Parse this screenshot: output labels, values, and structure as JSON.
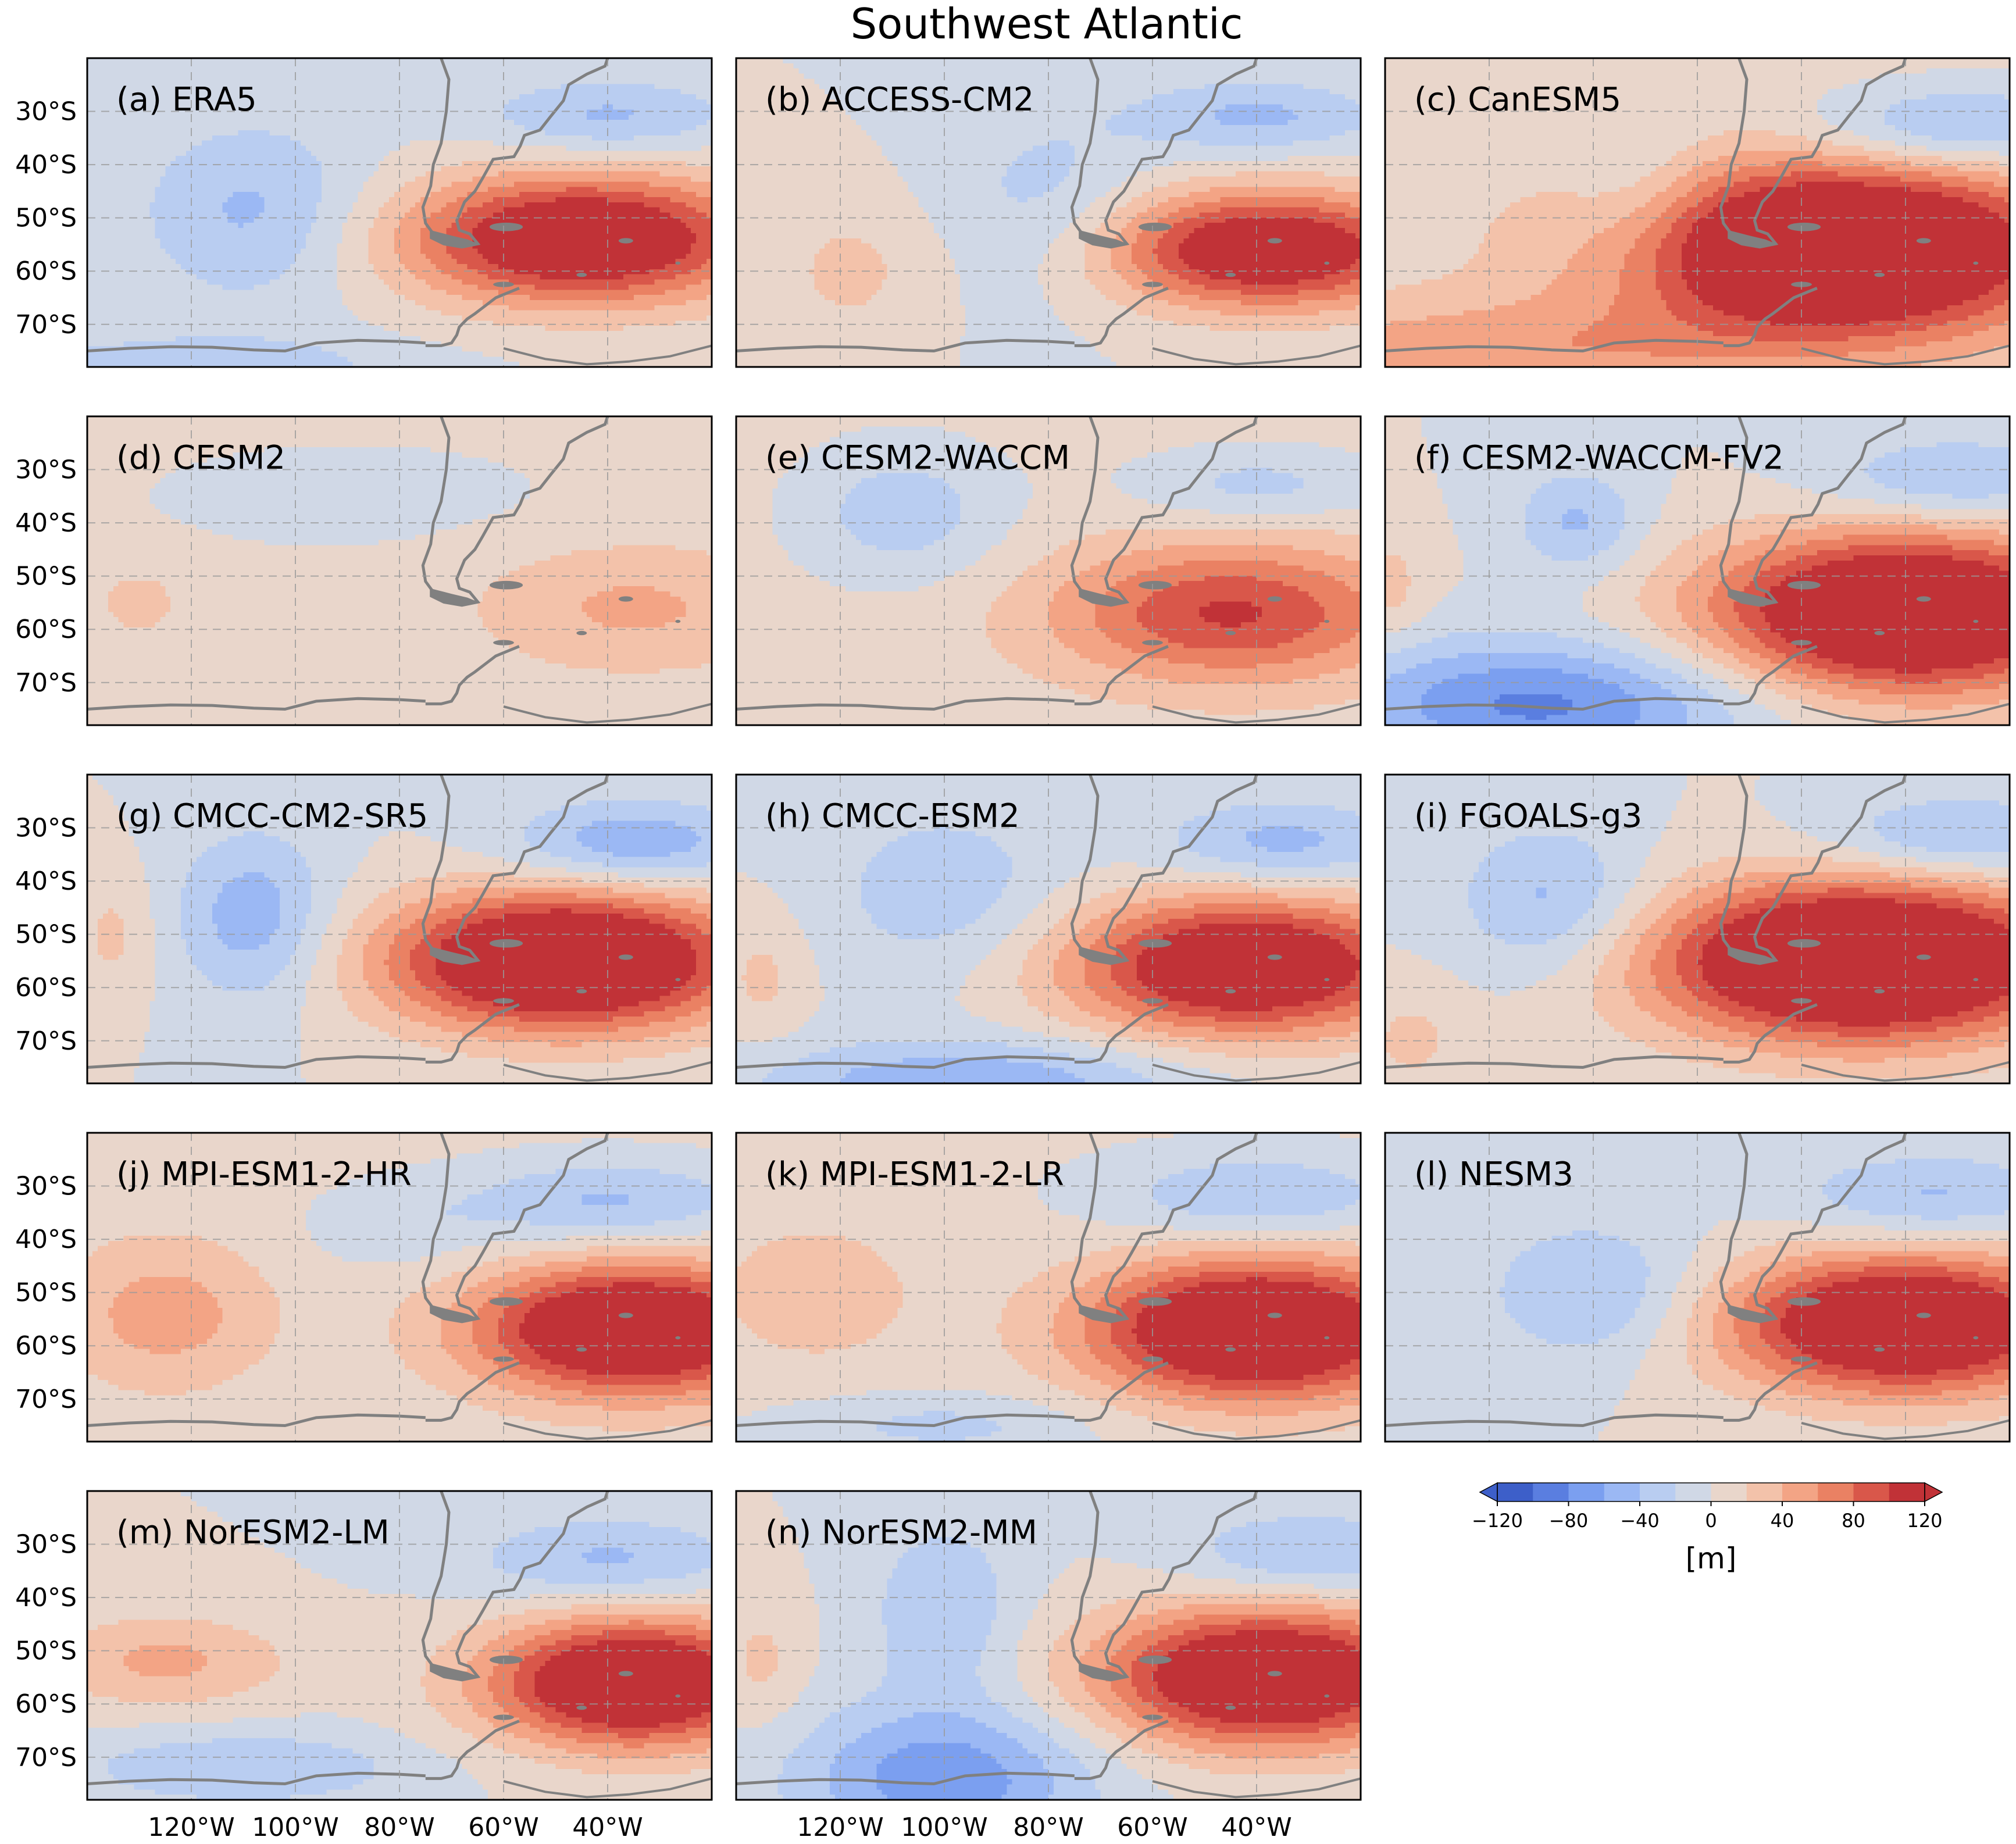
{
  "chart_data": {
    "type": "heatmap",
    "title": "Southwest Atlantic",
    "projection": "map",
    "lon_ticks": [
      "120°W",
      "100°W",
      "80°W",
      "60°W",
      "40°W"
    ],
    "lon_tick_values": [
      -120,
      -100,
      -80,
      -60,
      -40
    ],
    "lat_ticks": [
      "30°S",
      "40°S",
      "50°S",
      "60°S",
      "70°S"
    ],
    "lat_tick_values": [
      -30,
      -40,
      -50,
      -60,
      -70
    ],
    "lon_range": [
      -140,
      -20
    ],
    "lat_range": [
      -78,
      -20
    ],
    "colorbar": {
      "label": "[m]",
      "levels": [
        -120,
        -100,
        -80,
        -60,
        -40,
        -20,
        0,
        20,
        40,
        60,
        80,
        100,
        120
      ],
      "tick_labels": [
        "−120",
        "−80",
        "−40",
        "0",
        "40",
        "80",
        "120"
      ],
      "tick_values": [
        -120,
        -80,
        -40,
        0,
        40,
        80,
        120
      ],
      "colors": [
        "#3d5fc9",
        "#5a7ee0",
        "#7b9ff0",
        "#9bb8f4",
        "#b9cdf1",
        "#d0d8e6",
        "#e9d6cb",
        "#f3c2aa",
        "#f3a485",
        "#ea8163",
        "#d9574a",
        "#c13237"
      ],
      "extend": "both"
    },
    "panels": [
      {
        "label": "(a) ERA5",
        "high": {
          "lon": -45,
          "lat": -54,
          "amp": 150,
          "rx": 34,
          "ry": 12
        },
        "lows": [
          {
            "lon": -108,
            "lat": -49,
            "amp": -45,
            "rx": 22,
            "ry": 17
          },
          {
            "lon": -40,
            "lat": -31,
            "amp": -45,
            "rx": 24,
            "ry": 7
          },
          {
            "lon": -120,
            "lat": -78,
            "amp": -35,
            "rx": 40,
            "ry": 6
          }
        ],
        "bias": 0
      },
      {
        "label": "(b) ACCESS-CM2",
        "high": {
          "lon": -38,
          "lat": -56,
          "amp": 140,
          "rx": 32,
          "ry": 11
        },
        "lows": [
          {
            "lon": -80,
            "lat": -48,
            "amp": -30,
            "rx": 20,
            "ry": 18
          },
          {
            "lon": -40,
            "lat": -31,
            "amp": -45,
            "rx": 24,
            "ry": 7
          },
          {
            "lon": -118,
            "lat": -60,
            "amp": 25,
            "rx": 16,
            "ry": 14
          }
        ],
        "bias": 0
      },
      {
        "label": "(c) CanESM5",
        "high": {
          "lon": -52,
          "lat": -56,
          "amp": 180,
          "rx": 42,
          "ry": 16
        },
        "lows": [
          {
            "lon": -92,
            "lat": -46,
            "amp": -28,
            "rx": 14,
            "ry": 16
          },
          {
            "lon": -30,
            "lat": -33,
            "amp": -60,
            "rx": 28,
            "ry": 8
          },
          {
            "lon": -120,
            "lat": -75,
            "amp": 45,
            "rx": 60,
            "ry": 10
          }
        ],
        "bias": 8
      },
      {
        "label": "(d) CESM2",
        "high": {
          "lon": -35,
          "lat": -56,
          "amp": 38,
          "rx": 30,
          "ry": 12
        },
        "lows": [
          {
            "lon": -90,
            "lat": -35,
            "amp": -15,
            "rx": 40,
            "ry": 10
          },
          {
            "lon": -130,
            "lat": -55,
            "amp": 20,
            "rx": 10,
            "ry": 8
          }
        ],
        "bias": 6
      },
      {
        "label": "(e) CESM2-WACCM",
        "high": {
          "lon": -45,
          "lat": -57,
          "amp": 95,
          "rx": 34,
          "ry": 13
        },
        "lows": [
          {
            "lon": -108,
            "lat": -38,
            "amp": -40,
            "rx": 20,
            "ry": 13
          },
          {
            "lon": -40,
            "lat": -33,
            "amp": -35,
            "rx": 24,
            "ry": 7
          }
        ],
        "bias": 8
      },
      {
        "label": "(f) CESM2-WACCM-FV2",
        "high": {
          "lon": -40,
          "lat": -57,
          "amp": 175,
          "rx": 38,
          "ry": 15
        },
        "lows": [
          {
            "lon": -110,
            "lat": -74,
            "amp": -85,
            "rx": 40,
            "ry": 12
          },
          {
            "lon": -103,
            "lat": -40,
            "amp": -45,
            "rx": 12,
            "ry": 10
          },
          {
            "lon": -30,
            "lat": -32,
            "amp": -45,
            "rx": 26,
            "ry": 8
          },
          {
            "lon": -140,
            "lat": -52,
            "amp": 30,
            "rx": 8,
            "ry": 10
          }
        ],
        "bias": 0
      },
      {
        "label": "(g) CMCC-CM2-SR5",
        "high": {
          "lon": -48,
          "lat": -55,
          "amp": 175,
          "rx": 34,
          "ry": 13
        },
        "lows": [
          {
            "lon": -108,
            "lat": -47,
            "amp": -55,
            "rx": 15,
            "ry": 16
          },
          {
            "lon": -35,
            "lat": -33,
            "amp": -60,
            "rx": 24,
            "ry": 8
          },
          {
            "lon": -135,
            "lat": -50,
            "amp": 25,
            "rx": 8,
            "ry": 12
          }
        ],
        "bias": 0
      },
      {
        "label": "(h) CMCC-ESM2",
        "high": {
          "lon": -42,
          "lat": -56,
          "amp": 150,
          "rx": 34,
          "ry": 13
        },
        "lows": [
          {
            "lon": -100,
            "lat": -42,
            "amp": -35,
            "rx": 22,
            "ry": 16
          },
          {
            "lon": -35,
            "lat": -33,
            "amp": -50,
            "rx": 24,
            "ry": 8
          },
          {
            "lon": -95,
            "lat": -78,
            "amp": -60,
            "rx": 40,
            "ry": 8
          },
          {
            "lon": -135,
            "lat": -58,
            "amp": 25,
            "rx": 8,
            "ry": 12
          }
        ],
        "bias": 0
      },
      {
        "label": "(i) FGOALS-g3",
        "high": {
          "lon": -48,
          "lat": -55,
          "amp": 190,
          "rx": 40,
          "ry": 15
        },
        "lows": [
          {
            "lon": -108,
            "lat": -44,
            "amp": -50,
            "rx": 18,
            "ry": 14
          },
          {
            "lon": -30,
            "lat": -32,
            "amp": -50,
            "rx": 26,
            "ry": 8
          },
          {
            "lon": -135,
            "lat": -70,
            "amp": 25,
            "rx": 10,
            "ry": 10
          }
        ],
        "bias": 0
      },
      {
        "label": "(j) MPI-ESM1-2-HR",
        "high": {
          "lon": -35,
          "lat": -57,
          "amp": 160,
          "rx": 30,
          "ry": 12
        },
        "lows": [
          {
            "lon": -125,
            "lat": -54,
            "amp": 45,
            "rx": 20,
            "ry": 14
          },
          {
            "lon": -40,
            "lat": -33,
            "amp": -50,
            "rx": 28,
            "ry": 8
          },
          {
            "lon": -80,
            "lat": -38,
            "amp": -20,
            "rx": 18,
            "ry": 8
          }
        ],
        "bias": 6
      },
      {
        "label": "(k) MPI-ESM1-2-LR",
        "high": {
          "lon": -40,
          "lat": -57,
          "amp": 165,
          "rx": 32,
          "ry": 13
        },
        "lows": [
          {
            "lon": -125,
            "lat": -50,
            "amp": 30,
            "rx": 20,
            "ry": 14
          },
          {
            "lon": -40,
            "lat": -32,
            "amp": -45,
            "rx": 28,
            "ry": 8
          },
          {
            "lon": -100,
            "lat": -75,
            "amp": -30,
            "rx": 30,
            "ry": 6
          }
        ],
        "bias": 4
      },
      {
        "label": "(l) NESM3",
        "high": {
          "lon": -40,
          "lat": -56,
          "amp": 165,
          "rx": 34,
          "ry": 13
        },
        "lows": [
          {
            "lon": -100,
            "lat": -50,
            "amp": -45,
            "rx": 20,
            "ry": 13
          },
          {
            "lon": -35,
            "lat": -32,
            "amp": -45,
            "rx": 26,
            "ry": 8
          }
        ],
        "bias": 0
      },
      {
        "label": "(m) NorESM2-LM",
        "high": {
          "lon": -35,
          "lat": -56,
          "amp": 160,
          "rx": 28,
          "ry": 12
        },
        "lows": [
          {
            "lon": -125,
            "lat": -52,
            "amp": 45,
            "rx": 24,
            "ry": 9
          },
          {
            "lon": -40,
            "lat": -33,
            "amp": -45,
            "rx": 26,
            "ry": 8
          },
          {
            "lon": -110,
            "lat": -72,
            "amp": -40,
            "rx": 32,
            "ry": 7
          }
        ],
        "bias": 0
      },
      {
        "label": "(n) NorESM2-MM",
        "high": {
          "lon": -38,
          "lat": -55,
          "amp": 160,
          "rx": 32,
          "ry": 13
        },
        "lows": [
          {
            "lon": -100,
            "lat": -74,
            "amp": -75,
            "rx": 28,
            "ry": 14
          },
          {
            "lon": -100,
            "lat": -42,
            "amp": -40,
            "rx": 14,
            "ry": 16
          },
          {
            "lon": -30,
            "lat": -32,
            "amp": -45,
            "rx": 24,
            "ry": 8
          },
          {
            "lon": -135,
            "lat": -52,
            "amp": 25,
            "rx": 8,
            "ry": 12
          }
        ],
        "bias": 0
      }
    ]
  },
  "ui": {
    "colors": {
      "frame": "#000000",
      "land": "#808080",
      "grid": "#9a9a9a"
    }
  }
}
